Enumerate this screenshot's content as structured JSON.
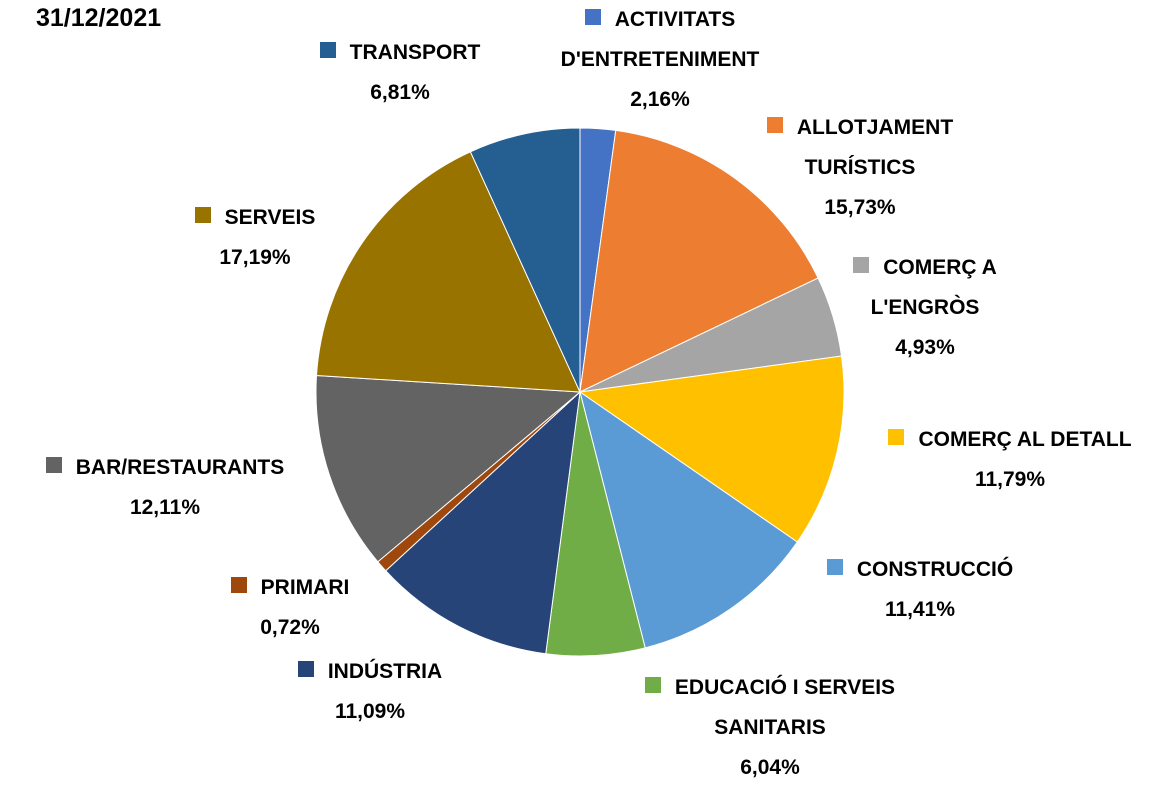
{
  "chart_data": {
    "type": "pie",
    "title": "31/12/2021",
    "categories": [
      "ACTIVITATS D'ENTRETENIMENT",
      "ALLOTJAMENT TURÍSTICS",
      "COMERÇ A L'ENGRÒS",
      "COMERÇ AL DETALL",
      "CONSTRUCCIÓ",
      "EDUCACIÓ I SERVEIS SANITARIS",
      "INDÚSTRIA",
      "PRIMARI",
      "BAR/RESTAURANTS",
      "SERVEIS",
      "TRANSPORT"
    ],
    "values": [
      2.16,
      15.73,
      4.93,
      11.79,
      11.41,
      6.04,
      11.09,
      0.72,
      12.11,
      17.19,
      6.81
    ],
    "value_labels": [
      "2,16%",
      "15,73%",
      "4,93%",
      "11,79%",
      "11,41%",
      "6,04%",
      "11,09%",
      "0,72%",
      "12,11%",
      "17,19%",
      "6,81%"
    ],
    "colors": [
      "#4472c4",
      "#ed7d31",
      "#a5a5a5",
      "#ffc000",
      "#5b9bd5",
      "#70ad47",
      "#264478",
      "#9e480e",
      "#636363",
      "#997300",
      "#255e91"
    ]
  }
}
